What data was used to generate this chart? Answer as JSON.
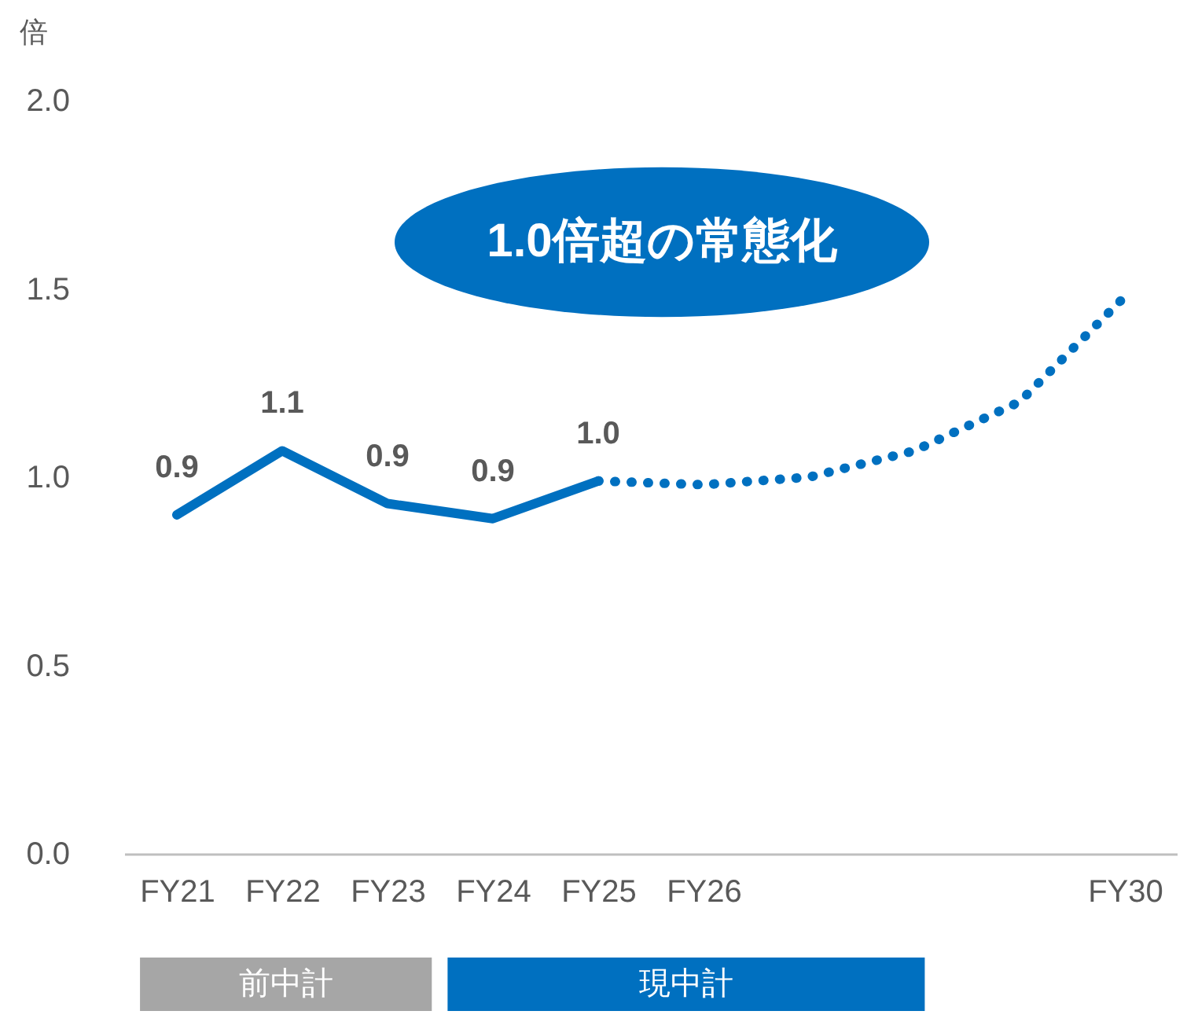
{
  "chart_data": {
    "type": "line",
    "ylabel": "倍",
    "categories": [
      "FY21",
      "FY22",
      "FY23",
      "FY24",
      "FY25",
      "FY26",
      null,
      null,
      null,
      "FY30"
    ],
    "series": [
      {
        "color": "#0070c0",
        "values": [
          0.9,
          1.07,
          0.93,
          0.89,
          0.99,
          null,
          null,
          null,
          null,
          null
        ],
        "value_labels": [
          "0.9",
          "1.1",
          "0.9",
          "0.9",
          "1.0",
          null,
          null,
          null,
          null,
          null
        ]
      },
      {
        "color": "#0070c0",
        "line_style": "dotted",
        "values": [
          null,
          null,
          null,
          null,
          0.99,
          0.98,
          1.0,
          1.07,
          1.2,
          1.48
        ]
      }
    ],
    "ylim": [
      0,
      2
    ],
    "yticks": [
      {
        "value": 0,
        "label": "0.0"
      },
      {
        "value": 0.5,
        "label": "0.5"
      },
      {
        "value": 1,
        "label": "1.0"
      },
      {
        "value": 1.5,
        "label": "1.5"
      },
      {
        "value": 2,
        "label": "2.0"
      }
    ],
    "grid": false,
    "marker": "none",
    "annotations": [
      "1.0倍超の常態化",
      "前中計",
      "現中計"
    ]
  }
}
